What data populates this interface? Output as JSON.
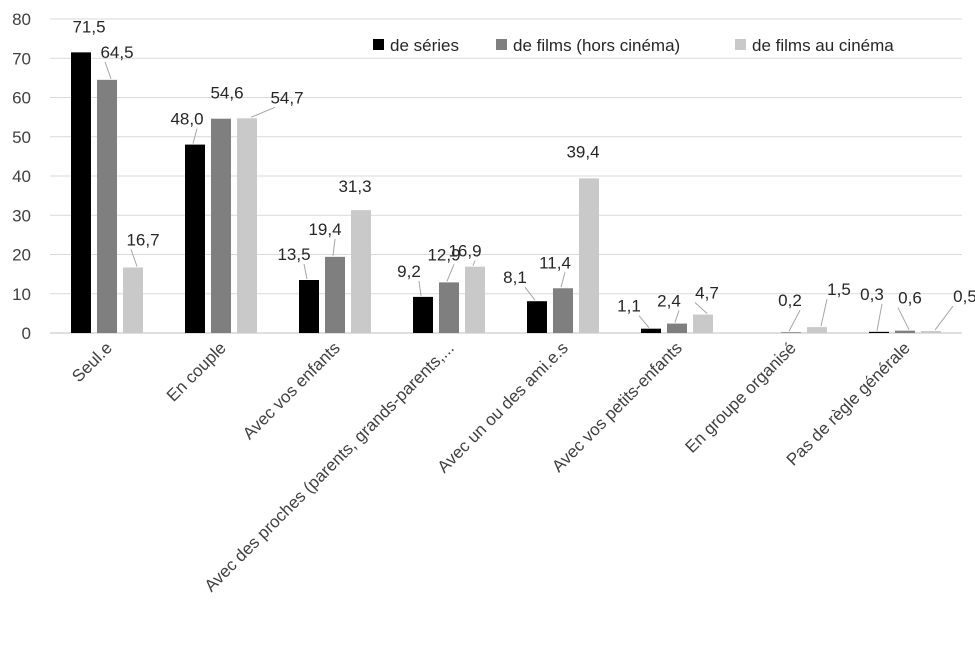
{
  "chart_data": {
    "type": "bar",
    "categories": [
      "Seul.e",
      "En couple",
      "Avec vos enfants",
      "Avec des proches (parents, grands-parents,...",
      "Avec un ou des ami.e.s",
      "Avec vos petits-enfants",
      "En groupe organisé",
      "Pas de règle générale"
    ],
    "series": [
      {
        "name": "de séries",
        "color": "#000000",
        "values": [
          71.5,
          48.0,
          13.5,
          9.2,
          8.1,
          1.1,
          0.0,
          0.3
        ],
        "labels": [
          "71,5",
          "48,0",
          "13,5",
          "9,2",
          "8,1",
          "1,1",
          "",
          "0,3"
        ]
      },
      {
        "name": "de films (hors cinéma)",
        "color": "#7f7f7f",
        "values": [
          64.5,
          54.6,
          19.4,
          12.9,
          11.4,
          2.4,
          0.2,
          0.6
        ],
        "labels": [
          "64,5",
          "54,6",
          "19,4",
          "12,9",
          "11,4",
          "2,4",
          "0,2",
          "0,6"
        ]
      },
      {
        "name": "de films au cinéma",
        "color": "#c9c9c9",
        "values": [
          16.7,
          54.7,
          31.3,
          16.9,
          39.4,
          4.7,
          1.5,
          0.5
        ],
        "labels": [
          "16,7",
          "54,7",
          "31,3",
          "16,9",
          "39,4",
          "4,7",
          "1,5",
          "0,5"
        ]
      }
    ],
    "extra_labels": [
      "0,5"
    ],
    "ylim": [
      0,
      80
    ],
    "yticks": [
      "0",
      "10",
      "20",
      "30",
      "40",
      "50",
      "60",
      "70",
      "80"
    ],
    "ytick_values": [
      0,
      10,
      20,
      30,
      40,
      50,
      60,
      70,
      80
    ],
    "grid": true,
    "legend_position": "top-right",
    "title": "",
    "xlabel": "",
    "ylabel": ""
  }
}
